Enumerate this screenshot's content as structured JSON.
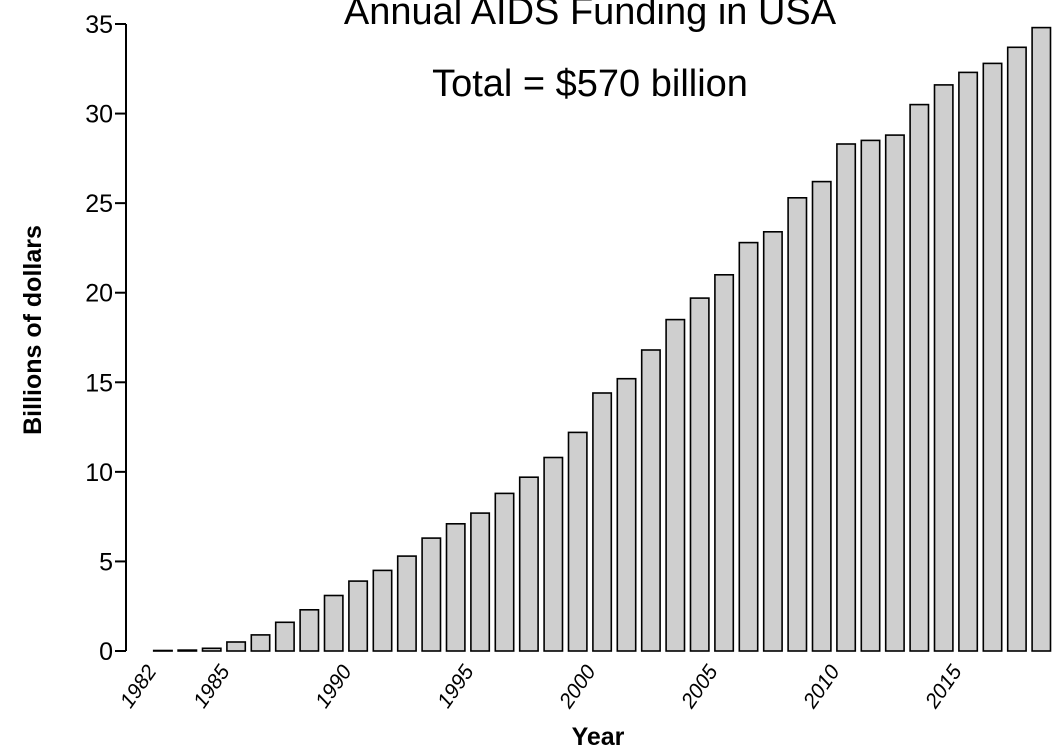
{
  "chart_data": {
    "type": "bar",
    "title": "Annual AIDS Funding in USA",
    "subtitle": "Total = $570 billion",
    "xlabel": "Year",
    "ylabel": "Billions of dollars",
    "ylim": [
      0,
      35
    ],
    "yticks": [
      0,
      5,
      10,
      15,
      20,
      25,
      30,
      35
    ],
    "xtick_labels": [
      "1982",
      "1985",
      "1990",
      "1995",
      "2000",
      "2005",
      "2010",
      "2015"
    ],
    "grid": false,
    "legend": "none",
    "bar_color": "#cfcfcf",
    "categories": [
      1982,
      1983,
      1984,
      1985,
      1986,
      1987,
      1988,
      1989,
      1990,
      1991,
      1992,
      1993,
      1994,
      1995,
      1996,
      1997,
      1998,
      1999,
      2000,
      2001,
      2002,
      2003,
      2004,
      2005,
      2006,
      2007,
      2008,
      2009,
      2010,
      2011,
      2012,
      2013,
      2014,
      2015,
      2016,
      2017,
      2018,
      2019
    ],
    "values": [
      0,
      0.03,
      0.05,
      0.15,
      0.5,
      0.9,
      1.6,
      2.3,
      3.1,
      3.9,
      4.5,
      5.3,
      6.3,
      7.1,
      7.7,
      8.8,
      9.7,
      10.8,
      12.2,
      14.4,
      15.2,
      16.8,
      18.5,
      19.7,
      21.0,
      22.8,
      23.4,
      25.3,
      26.2,
      28.3,
      28.5,
      28.8,
      30.5,
      31.6,
      32.3,
      32.8,
      33.7,
      34.8
    ]
  }
}
